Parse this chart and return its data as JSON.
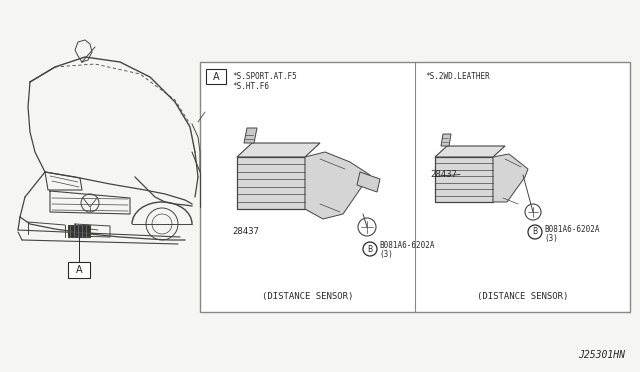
{
  "bg_color": "#f5f5f3",
  "title_code": "J25301HN",
  "box_label_left_line1": "*S.SPORT.AT.F5",
  "box_label_left_line2": "*S.HT.F6",
  "box_label_right": "*S.2WD.LEATHER",
  "part_number": "28437",
  "bolt_label_line1": "B081A6-6202A",
  "bolt_label_line2": "(3)",
  "caption": "(DISTANCE SENSOR)",
  "callout_A": "A",
  "car_color": "#444444",
  "text_color": "#2a2a2a",
  "box_edge_color": "#aaaaaa",
  "sensor_fill": "#d8d8d8",
  "white": "#ffffff"
}
